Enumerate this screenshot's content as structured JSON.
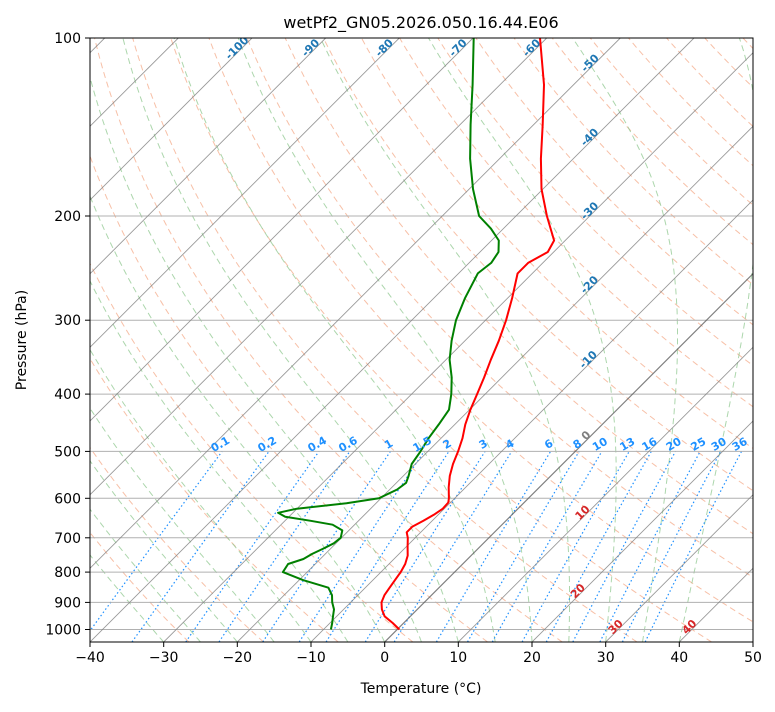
{
  "chart_data": {
    "type": "line",
    "subtype": "skew-T log-P",
    "title": "wetPf2_GN05.2026.050.16.44.E06",
    "xlabel": "Temperature (°C)",
    "ylabel": "Pressure (hPa)",
    "xlim": [
      -40,
      50
    ],
    "ylim": [
      1050,
      100
    ],
    "y_scale": "log",
    "x_ticks": [
      -40,
      -30,
      -20,
      -10,
      0,
      10,
      20,
      30,
      40,
      50
    ],
    "x_tick_labels": [
      "−40",
      "−30",
      "−20",
      "−10",
      "0",
      "10",
      "20",
      "30",
      "40",
      "50"
    ],
    "y_ticks": [
      1000,
      900,
      800,
      700,
      600,
      500,
      400,
      300,
      200,
      100
    ],
    "y_tick_labels": [
      "1000",
      "900",
      "800",
      "700",
      "600",
      "500",
      "400",
      "300",
      "200",
      "100"
    ],
    "grid": true,
    "colors": {
      "temperature": "#ff0000",
      "dewpoint": "#008000",
      "isotherm": "#808080",
      "dry_adiabat": "#f4a582",
      "moist_adiabat": "#90c890",
      "mixing_ratio": "#1e90ff",
      "gridline": "#b0b0b0",
      "height_label": "#1f77b4",
      "warm_label": "#d62728",
      "zero_label": "#808080"
    },
    "series": [
      {
        "name": "Temperature",
        "color": "#ff0000",
        "points": [
          [
            1000,
            0.3
          ],
          [
            975,
            -1.5
          ],
          [
            950,
            -3.5
          ],
          [
            925,
            -4.8
          ],
          [
            900,
            -5.8
          ],
          [
            875,
            -6.4
          ],
          [
            850,
            -6.7
          ],
          [
            825,
            -7.0
          ],
          [
            800,
            -7.3
          ],
          [
            775,
            -7.8
          ],
          [
            750,
            -8.6
          ],
          [
            725,
            -9.8
          ],
          [
            700,
            -11.0
          ],
          [
            685,
            -11.9
          ],
          [
            670,
            -11.9
          ],
          [
            655,
            -11.2
          ],
          [
            640,
            -10.6
          ],
          [
            625,
            -10.2
          ],
          [
            610,
            -10.3
          ],
          [
            600,
            -10.8
          ],
          [
            575,
            -12.3
          ],
          [
            550,
            -13.7
          ],
          [
            525,
            -14.9
          ],
          [
            500,
            -15.9
          ],
          [
            475,
            -17.1
          ],
          [
            450,
            -18.6
          ],
          [
            425,
            -19.9
          ],
          [
            400,
            -21.1
          ],
          [
            375,
            -22.4
          ],
          [
            350,
            -23.9
          ],
          [
            325,
            -25.4
          ],
          [
            300,
            -27.2
          ],
          [
            275,
            -29.4
          ],
          [
            250,
            -32.0
          ],
          [
            240,
            -32.0
          ],
          [
            230,
            -30.8
          ],
          [
            220,
            -31.5
          ],
          [
            210,
            -33.6
          ],
          [
            200,
            -35.8
          ],
          [
            180,
            -40.2
          ],
          [
            160,
            -44.4
          ],
          [
            140,
            -48.8
          ],
          [
            120,
            -54.0
          ],
          [
            100,
            -60.9
          ]
        ]
      },
      {
        "name": "Dewpoint",
        "color": "#008000",
        "points": [
          [
            1000,
            -9.0
          ],
          [
            975,
            -9.7
          ],
          [
            950,
            -10.5
          ],
          [
            925,
            -11.3
          ],
          [
            900,
            -12.5
          ],
          [
            875,
            -13.5
          ],
          [
            850,
            -15.0
          ],
          [
            825,
            -19.5
          ],
          [
            800,
            -23.3
          ],
          [
            775,
            -23.7
          ],
          [
            760,
            -22.3
          ],
          [
            745,
            -21.8
          ],
          [
            730,
            -21.0
          ],
          [
            715,
            -20.3
          ],
          [
            700,
            -20.1
          ],
          [
            680,
            -20.9
          ],
          [
            665,
            -23.0
          ],
          [
            655,
            -26.5
          ],
          [
            645,
            -30.5
          ],
          [
            635,
            -32.0
          ],
          [
            625,
            -30.0
          ],
          [
            612,
            -24.0
          ],
          [
            600,
            -20.3
          ],
          [
            580,
            -19.0
          ],
          [
            565,
            -18.7
          ],
          [
            550,
            -19.3
          ],
          [
            525,
            -20.5
          ],
          [
            500,
            -21.0
          ],
          [
            475,
            -21.7
          ],
          [
            450,
            -22.2
          ],
          [
            425,
            -22.8
          ],
          [
            400,
            -24.6
          ],
          [
            375,
            -26.8
          ],
          [
            350,
            -29.5
          ],
          [
            325,
            -31.8
          ],
          [
            300,
            -34.0
          ],
          [
            275,
            -35.8
          ],
          [
            250,
            -37.4
          ],
          [
            240,
            -37.0
          ],
          [
            230,
            -37.5
          ],
          [
            220,
            -39.0
          ],
          [
            210,
            -41.7
          ],
          [
            200,
            -45.0
          ],
          [
            180,
            -49.5
          ],
          [
            160,
            -54.0
          ],
          [
            140,
            -58.6
          ],
          [
            120,
            -63.7
          ],
          [
            100,
            -69.9
          ]
        ]
      }
    ],
    "height_labels": [
      "-100",
      "-90",
      "-80",
      "-70",
      "-60",
      "-50",
      "-40",
      "-30",
      "-20",
      "-10",
      "0",
      "10",
      "20",
      "30",
      "40"
    ],
    "height_label_temps": [
      -100,
      -90,
      -80,
      -70,
      -60,
      -50,
      -40,
      -30,
      -20,
      -10,
      0,
      10,
      20,
      30,
      40
    ],
    "mixing_ratio_labels": [
      "0.1",
      "0.2",
      "0.4",
      "0.6",
      "1",
      "1.5",
      "2",
      "3",
      "4",
      "6",
      "8",
      "10",
      "13",
      "16",
      "20",
      "25",
      "30",
      "36"
    ],
    "mixing_ratio_values": [
      0.1,
      0.2,
      0.4,
      0.6,
      1,
      1.5,
      2,
      3,
      4,
      6,
      8,
      10,
      13,
      16,
      20,
      25,
      30,
      36
    ]
  }
}
